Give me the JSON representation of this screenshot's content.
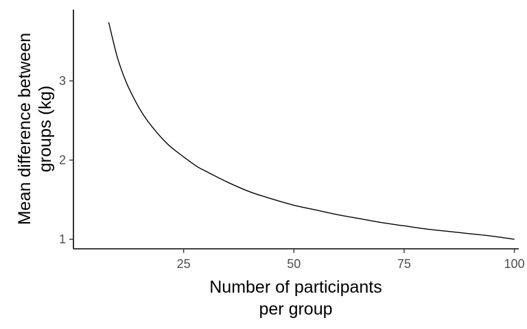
{
  "chart_data": {
    "type": "line",
    "title": "",
    "xlabel_lines": [
      "Number of participants",
      "per group"
    ],
    "ylabel_lines": [
      "Mean difference between",
      "groups (kg)"
    ],
    "xlim": [
      0,
      101
    ],
    "ylim": [
      0.88,
      3.9
    ],
    "x_ticks": [
      25,
      50,
      75,
      100
    ],
    "x_tick_labels": [
      "25",
      "50",
      "75",
      "100"
    ],
    "y_ticks": [
      1,
      2,
      3
    ],
    "y_tick_labels": [
      "1",
      "2",
      "3"
    ],
    "grid": false,
    "legend": "none",
    "series": [
      {
        "color": "#000000",
        "x": [
          8,
          10,
          12,
          14,
          16,
          18,
          20,
          22,
          25,
          28,
          30,
          35,
          40,
          45,
          50,
          55,
          60,
          65,
          70,
          75,
          80,
          85,
          90,
          95,
          100
        ],
        "y": [
          3.74,
          3.29,
          2.98,
          2.75,
          2.56,
          2.41,
          2.28,
          2.17,
          2.04,
          1.92,
          1.86,
          1.72,
          1.6,
          1.51,
          1.43,
          1.37,
          1.31,
          1.26,
          1.21,
          1.17,
          1.13,
          1.1,
          1.07,
          1.04,
          1.0
        ]
      }
    ]
  }
}
